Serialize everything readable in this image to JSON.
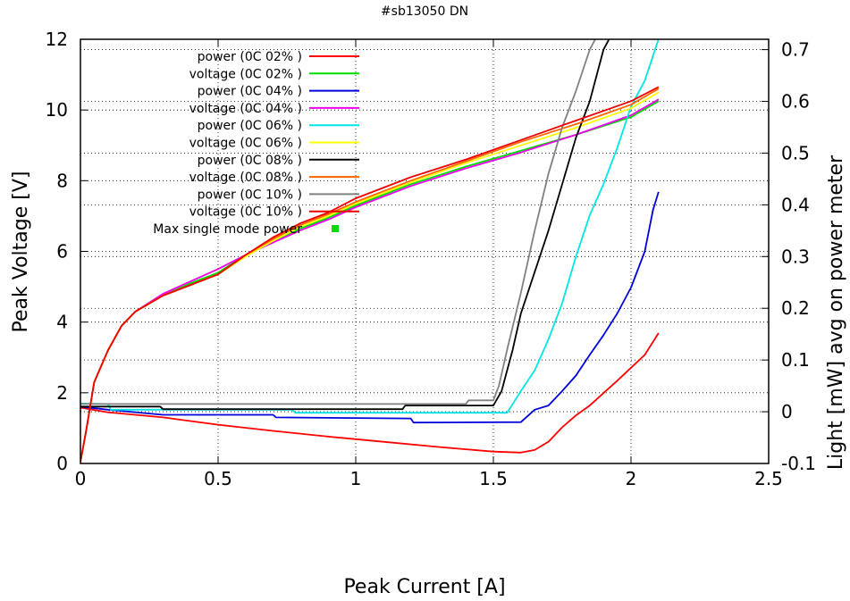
{
  "chart_data": {
    "type": "line",
    "title": "#sb13050 DN",
    "xlabel": "Peak Current [A]",
    "ylabel": "Peak Voltage [V]",
    "y2label": "Light [mW] avg on power meter",
    "xlim": [
      0,
      2.5
    ],
    "ylim": [
      0,
      12
    ],
    "y2lim": [
      -0.1,
      0.72
    ],
    "x_ticks": [
      "0",
      "0.5",
      "1",
      "1.5",
      "2",
      "2.5"
    ],
    "y_ticks": [
      "0",
      "2",
      "4",
      "6",
      "8",
      "10",
      "12"
    ],
    "y2_ticks": [
      "-0.1",
      "0",
      "0.1",
      "0.2",
      "0.3",
      "0.4",
      "0.5",
      "0.6",
      "0.7"
    ],
    "grid": true,
    "legend_position": "top-left",
    "series": [
      {
        "name": "power (0C 02% )",
        "axis": "y2",
        "color": "#ff0000",
        "points": [
          [
            0,
            0.008
          ],
          [
            0.1,
            -0.001
          ],
          [
            0.3,
            -0.011
          ],
          [
            0.5,
            -0.025
          ],
          [
            0.7,
            -0.037
          ],
          [
            0.9,
            -0.048
          ],
          [
            1.1,
            -0.058
          ],
          [
            1.3,
            -0.068
          ],
          [
            1.5,
            -0.077
          ],
          [
            1.6,
            -0.079
          ],
          [
            1.65,
            -0.074
          ],
          [
            1.7,
            -0.058
          ],
          [
            1.75,
            -0.03
          ],
          [
            1.8,
            -0.007
          ],
          [
            1.85,
            0.012
          ],
          [
            1.9,
            0.036
          ],
          [
            1.95,
            0.06
          ],
          [
            2.0,
            0.085
          ],
          [
            2.05,
            0.11
          ],
          [
            2.1,
            0.152
          ]
        ]
      },
      {
        "name": "voltage (0C 02% )",
        "axis": "y",
        "color": "#00dd00",
        "points": [
          [
            0,
            0.05
          ],
          [
            0.02,
            0.9
          ],
          [
            0.05,
            2.3
          ],
          [
            0.1,
            3.2
          ],
          [
            0.15,
            3.9
          ],
          [
            0.2,
            4.3
          ],
          [
            0.3,
            4.75
          ],
          [
            0.4,
            5.1
          ],
          [
            0.5,
            5.4
          ],
          [
            0.6,
            5.9
          ],
          [
            0.7,
            6.3
          ],
          [
            0.8,
            6.65
          ],
          [
            0.9,
            6.95
          ],
          [
            1.0,
            7.3
          ],
          [
            1.2,
            7.9
          ],
          [
            1.4,
            8.4
          ],
          [
            1.6,
            8.85
          ],
          [
            1.8,
            9.3
          ],
          [
            2.0,
            9.8
          ],
          [
            2.1,
            10.25
          ]
        ]
      },
      {
        "name": "power (0C 04% )",
        "axis": "y2",
        "color": "#0000dd",
        "points": [
          [
            0,
            0.01
          ],
          [
            0.1,
            0.004
          ],
          [
            0.3,
            -0.006
          ],
          [
            0.7,
            -0.006
          ],
          [
            0.71,
            -0.011
          ],
          [
            1.2,
            -0.013
          ],
          [
            1.21,
            -0.021
          ],
          [
            1.6,
            -0.02
          ],
          [
            1.65,
            0.004
          ],
          [
            1.7,
            0.012
          ],
          [
            1.75,
            0.04
          ],
          [
            1.8,
            0.07
          ],
          [
            1.85,
            0.11
          ],
          [
            1.9,
            0.148
          ],
          [
            1.95,
            0.19
          ],
          [
            2.0,
            0.24
          ],
          [
            2.05,
            0.31
          ],
          [
            2.08,
            0.39
          ],
          [
            2.1,
            0.425
          ]
        ]
      },
      {
        "name": "voltage (0C 04% )",
        "axis": "y",
        "color": "#ee00ee",
        "points": [
          [
            0,
            0.05
          ],
          [
            0.02,
            0.9
          ],
          [
            0.05,
            2.3
          ],
          [
            0.1,
            3.2
          ],
          [
            0.15,
            3.9
          ],
          [
            0.2,
            4.3
          ],
          [
            0.3,
            4.8
          ],
          [
            0.4,
            5.15
          ],
          [
            0.5,
            5.5
          ],
          [
            0.6,
            5.9
          ],
          [
            0.7,
            6.25
          ],
          [
            0.8,
            6.6
          ],
          [
            0.9,
            6.9
          ],
          [
            1.0,
            7.25
          ],
          [
            1.2,
            7.85
          ],
          [
            1.4,
            8.35
          ],
          [
            1.6,
            8.8
          ],
          [
            1.8,
            9.3
          ],
          [
            2.0,
            9.85
          ],
          [
            2.1,
            10.3
          ]
        ]
      },
      {
        "name": "power (0C 06% )",
        "axis": "y2",
        "color": "#00e5e5",
        "points": [
          [
            0,
            0.016
          ],
          [
            0.1,
            0.015
          ],
          [
            0.11,
            0.004
          ],
          [
            0.77,
            0.004
          ],
          [
            0.78,
            -0.002
          ],
          [
            1.55,
            -0.002
          ],
          [
            1.6,
            0.04
          ],
          [
            1.65,
            0.08
          ],
          [
            1.7,
            0.14
          ],
          [
            1.75,
            0.21
          ],
          [
            1.8,
            0.3
          ],
          [
            1.85,
            0.38
          ],
          [
            1.9,
            0.44
          ],
          [
            1.95,
            0.51
          ],
          [
            2.0,
            0.59
          ],
          [
            2.05,
            0.64
          ],
          [
            2.1,
            0.72
          ]
        ]
      },
      {
        "name": "voltage (0C 06% )",
        "axis": "y",
        "color": "#ffff00",
        "points": [
          [
            0,
            0.05
          ],
          [
            0.02,
            0.9
          ],
          [
            0.05,
            2.3
          ],
          [
            0.1,
            3.2
          ],
          [
            0.15,
            3.9
          ],
          [
            0.2,
            4.3
          ],
          [
            0.3,
            4.75
          ],
          [
            0.4,
            5.05
          ],
          [
            0.5,
            5.35
          ],
          [
            0.6,
            5.85
          ],
          [
            0.7,
            6.3
          ],
          [
            0.8,
            6.7
          ],
          [
            0.9,
            7.0
          ],
          [
            1.0,
            7.35
          ],
          [
            1.2,
            7.95
          ],
          [
            1.4,
            8.5
          ],
          [
            1.6,
            9.0
          ],
          [
            1.8,
            9.5
          ],
          [
            2.0,
            10.05
          ],
          [
            2.1,
            10.5
          ]
        ]
      },
      {
        "name": "power (0C 08% )",
        "axis": "y2",
        "color": "#000000",
        "points": [
          [
            0,
            0.01
          ],
          [
            0.29,
            0.01
          ],
          [
            0.3,
            0.005
          ],
          [
            1.17,
            0.005
          ],
          [
            1.18,
            0.012
          ],
          [
            1.5,
            0.012
          ],
          [
            1.53,
            0.04
          ],
          [
            1.57,
            0.12
          ],
          [
            1.6,
            0.19
          ],
          [
            1.65,
            0.27
          ],
          [
            1.7,
            0.35
          ],
          [
            1.75,
            0.44
          ],
          [
            1.8,
            0.53
          ],
          [
            1.85,
            0.6
          ],
          [
            1.9,
            0.7
          ],
          [
            1.92,
            0.72
          ]
        ]
      },
      {
        "name": "voltage (0C 08% )",
        "axis": "y",
        "color": "#ff6600",
        "points": [
          [
            0,
            0.05
          ],
          [
            0.02,
            0.9
          ],
          [
            0.05,
            2.3
          ],
          [
            0.1,
            3.2
          ],
          [
            0.15,
            3.9
          ],
          [
            0.2,
            4.3
          ],
          [
            0.3,
            4.75
          ],
          [
            0.4,
            5.05
          ],
          [
            0.5,
            5.35
          ],
          [
            0.6,
            5.9
          ],
          [
            0.7,
            6.35
          ],
          [
            0.8,
            6.75
          ],
          [
            0.9,
            7.05
          ],
          [
            1.0,
            7.4
          ],
          [
            1.2,
            8.0
          ],
          [
            1.4,
            8.55
          ],
          [
            1.6,
            9.1
          ],
          [
            1.8,
            9.6
          ],
          [
            2.0,
            10.15
          ],
          [
            2.1,
            10.6
          ]
        ]
      },
      {
        "name": "power (0C 10% )",
        "axis": "y2",
        "color": "#808080",
        "points": [
          [
            0,
            0.015
          ],
          [
            1.4,
            0.015
          ],
          [
            1.41,
            0.022
          ],
          [
            1.5,
            0.022
          ],
          [
            1.52,
            0.05
          ],
          [
            1.55,
            0.12
          ],
          [
            1.6,
            0.23
          ],
          [
            1.65,
            0.35
          ],
          [
            1.7,
            0.46
          ],
          [
            1.75,
            0.55
          ],
          [
            1.8,
            0.62
          ],
          [
            1.85,
            0.7
          ],
          [
            1.87,
            0.72
          ]
        ]
      },
      {
        "name": "voltage (0C 10% )",
        "axis": "y",
        "color": "#ee0000",
        "points": [
          [
            0,
            0.05
          ],
          [
            0.02,
            0.9
          ],
          [
            0.05,
            2.3
          ],
          [
            0.1,
            3.2
          ],
          [
            0.15,
            3.9
          ],
          [
            0.2,
            4.3
          ],
          [
            0.3,
            4.75
          ],
          [
            0.4,
            5.05
          ],
          [
            0.5,
            5.35
          ],
          [
            0.6,
            5.9
          ],
          [
            0.7,
            6.4
          ],
          [
            0.8,
            6.8
          ],
          [
            0.9,
            7.1
          ],
          [
            1.0,
            7.5
          ],
          [
            1.2,
            8.1
          ],
          [
            1.4,
            8.6
          ],
          [
            1.6,
            9.15
          ],
          [
            1.8,
            9.7
          ],
          [
            2.0,
            10.25
          ],
          [
            2.1,
            10.65
          ]
        ]
      }
    ],
    "extra_legend": {
      "name": "Max single mode power",
      "color": "#00dd00"
    }
  }
}
